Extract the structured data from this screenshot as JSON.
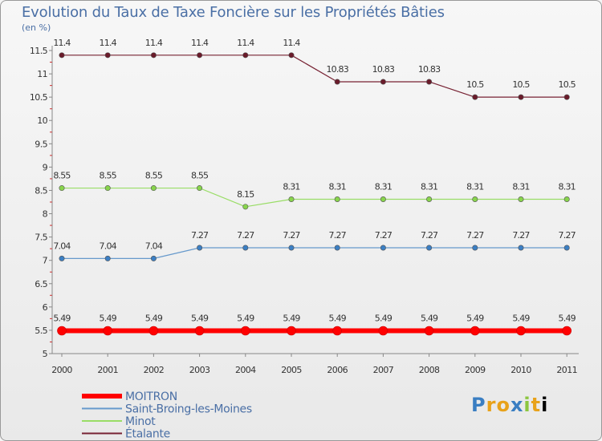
{
  "header": {
    "title": "Evolution du Taux de Taxe Foncière sur les Propriétés Bâties",
    "unit": "(en %)"
  },
  "logo": {
    "letters": [
      "P",
      "r",
      "o",
      "x",
      "i",
      "t",
      "i"
    ],
    "text": "Proxiti"
  },
  "chart_data": {
    "type": "line",
    "title": "Evolution du Taux de Taxe Foncière sur les Propriétés Bâties",
    "ylabel": "(en %)",
    "xlabel": "",
    "x": [
      "2000",
      "2001",
      "2002",
      "2003",
      "2004",
      "2005",
      "2006",
      "2007",
      "2008",
      "2009",
      "2010",
      "2011"
    ],
    "ylim": [
      5,
      11.5
    ],
    "yticks": [
      "5",
      "5.5",
      "6",
      "6.5",
      "7",
      "7.5",
      "8",
      "8.5",
      "9",
      "9.5",
      "10",
      "10.5",
      "11",
      "11.5"
    ],
    "grid": false,
    "legend_position": "bottom-left",
    "series": [
      {
        "name": "MOITRON",
        "color": "#ff0000",
        "values": [
          5.49,
          5.49,
          5.49,
          5.49,
          5.49,
          5.49,
          5.49,
          5.49,
          5.49,
          5.49,
          5.49,
          5.49
        ],
        "labels": [
          "5.49",
          "5.49",
          "5.49",
          "5.49",
          "5.49",
          "5.49",
          "5.49",
          "5.49",
          "5.49",
          "5.49",
          "5.49",
          "5.49"
        ]
      },
      {
        "name": "Saint-Broing-les-Moines",
        "color": "#6699cc",
        "values": [
          7.04,
          7.04,
          7.04,
          7.27,
          7.27,
          7.27,
          7.27,
          7.27,
          7.27,
          7.27,
          7.27,
          7.27
        ],
        "labels": [
          "7.04",
          "7.04",
          "7.04",
          "7.27",
          "7.27",
          "7.27",
          "7.27",
          "7.27",
          "7.27",
          "7.27",
          "7.27",
          "7.27"
        ]
      },
      {
        "name": "Minot",
        "color": "#99dd66",
        "values": [
          8.55,
          8.55,
          8.55,
          8.55,
          8.15,
          8.31,
          8.31,
          8.31,
          8.31,
          8.31,
          8.31,
          8.31
        ],
        "labels": [
          "8.55",
          "8.55",
          "8.55",
          "8.55",
          "8.15",
          "8.31",
          "8.31",
          "8.31",
          "8.31",
          "8.31",
          "8.31",
          "8.31"
        ]
      },
      {
        "name": "Étalante",
        "color": "#772233",
        "values": [
          11.4,
          11.4,
          11.4,
          11.4,
          11.4,
          11.4,
          10.83,
          10.83,
          10.83,
          10.5,
          10.5,
          10.5
        ],
        "labels": [
          "11.4",
          "11.4",
          "11.4",
          "11.4",
          "11.4",
          "11.4",
          "10.83",
          "10.83",
          "10.83",
          "10.5",
          "10.5",
          "10.5"
        ]
      }
    ]
  }
}
